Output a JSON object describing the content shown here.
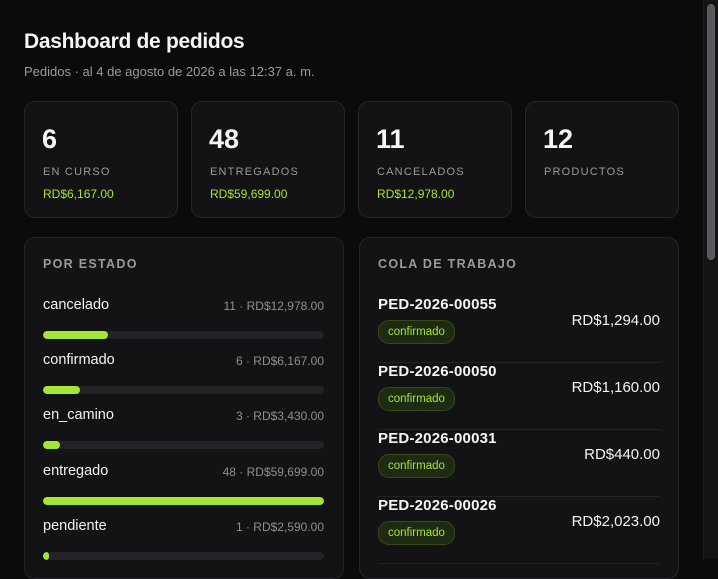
{
  "header": {
    "title": "Dashboard de pedidos",
    "subtitle": "Pedidos · al 4 de agosto de 2026 a las 12:37 a. m."
  },
  "stats": [
    {
      "value": "6",
      "label": "EN CURSO",
      "amount": "RD$6,167.00"
    },
    {
      "value": "48",
      "label": "ENTREGADOS",
      "amount": "RD$59,699.00"
    },
    {
      "value": "11",
      "label": "CANCELADOS",
      "amount": "RD$12,978.00"
    },
    {
      "value": "12",
      "label": "PRODUCTOS",
      "amount": ""
    }
  ],
  "status_panel": {
    "title": "POR ESTADO",
    "rows": [
      {
        "name": "cancelado",
        "meta": "11 · RD$12,978.00",
        "fraction": 0.23
      },
      {
        "name": "confirmado",
        "meta": "6 · RD$6,167.00",
        "fraction": 0.13
      },
      {
        "name": "en_camino",
        "meta": "3 · RD$3,430.00",
        "fraction": 0.06
      },
      {
        "name": "entregado",
        "meta": "48 · RD$59,699.00",
        "fraction": 1.0
      },
      {
        "name": "pendiente",
        "meta": "1 · RD$2,590.00",
        "fraction": 0.02
      }
    ]
  },
  "queue_panel": {
    "title": "COLA DE TRABAJO",
    "rows": [
      {
        "code": "PED-2026-00055",
        "status": "confirmado",
        "price": "RD$1,294.00"
      },
      {
        "code": "PED-2026-00050",
        "status": "confirmado",
        "price": "RD$1,160.00"
      },
      {
        "code": "PED-2026-00031",
        "status": "confirmado",
        "price": "RD$440.00"
      },
      {
        "code": "PED-2026-00026",
        "status": "confirmado",
        "price": "RD$2,023.00"
      }
    ]
  },
  "colors": {
    "accent": "#a3e635",
    "background": "#0b0b0c",
    "card": "#131315"
  }
}
